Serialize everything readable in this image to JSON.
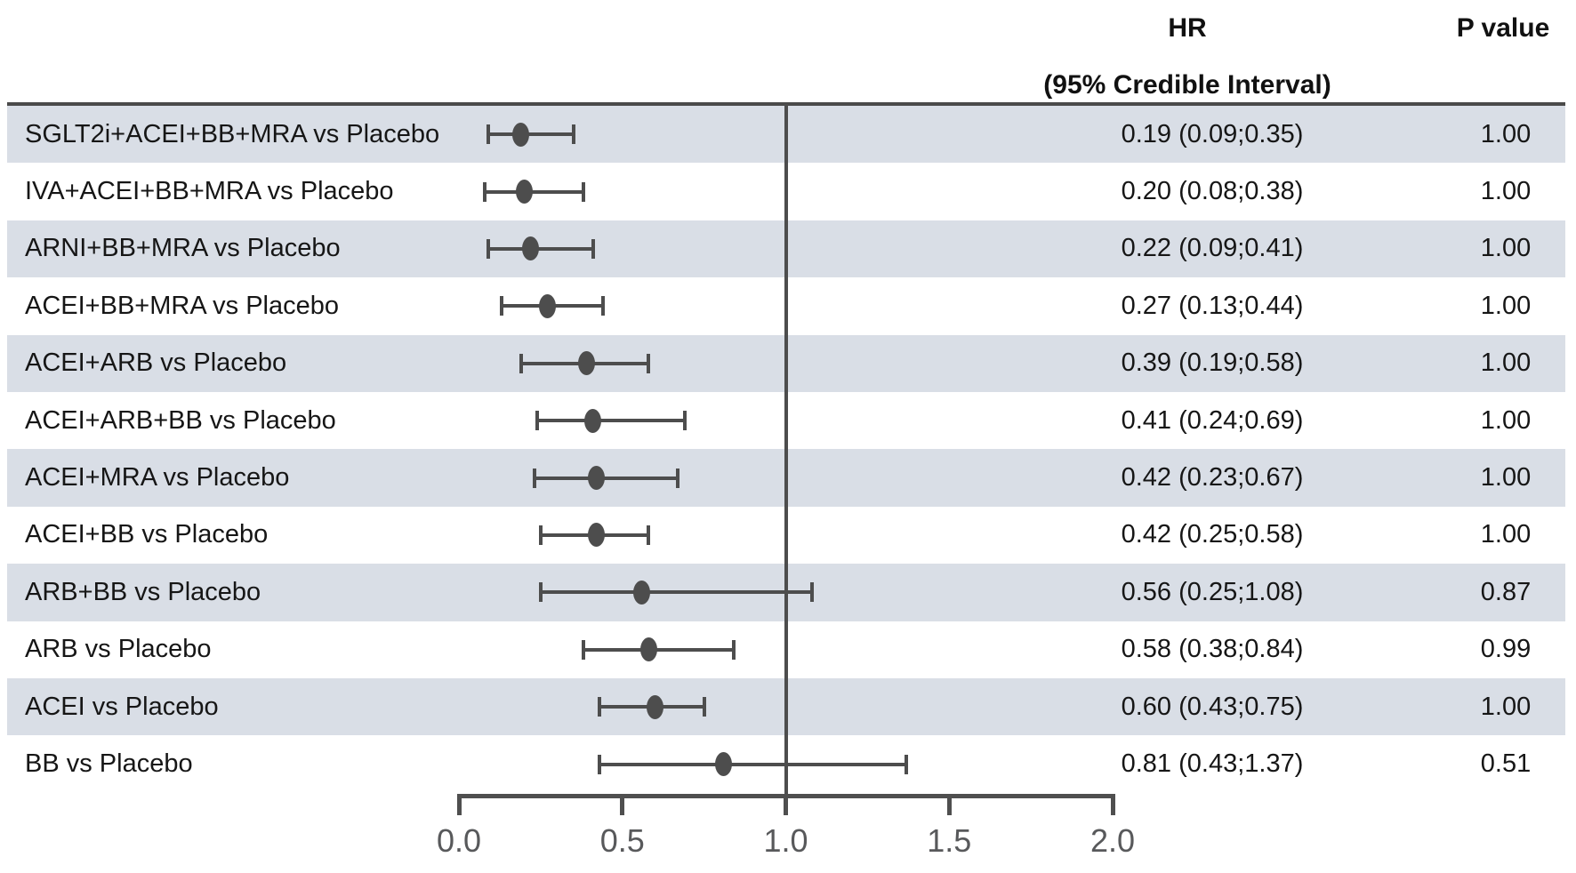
{
  "header": {
    "hr_label": "HR",
    "hr_sublabel": "(95% Credible Interval)",
    "p_label": "P value"
  },
  "chart_data": {
    "type": "forest",
    "title": "",
    "xlabel": "",
    "legend": null,
    "axis": {
      "min": 0.0,
      "max": 2.0,
      "tick_values": [
        0.0,
        0.5,
        1.0,
        1.5,
        2.0
      ],
      "tick_labels": [
        "0.0",
        "0.5",
        "1.0",
        "1.5",
        "2.0"
      ],
      "reference_line": 1.0
    },
    "rows": [
      {
        "label": "SGLT2i+ACEI+BB+MRA vs Placebo",
        "hr": 0.19,
        "ci_low": 0.09,
        "ci_high": 0.35,
        "hr_text": "0.19 (0.09;0.35)",
        "p_value": "1.00"
      },
      {
        "label": "IVA+ACEI+BB+MRA vs Placebo",
        "hr": 0.2,
        "ci_low": 0.08,
        "ci_high": 0.38,
        "hr_text": "0.20 (0.08;0.38)",
        "p_value": "1.00"
      },
      {
        "label": "ARNI+BB+MRA vs Placebo",
        "hr": 0.22,
        "ci_low": 0.09,
        "ci_high": 0.41,
        "hr_text": "0.22 (0.09;0.41)",
        "p_value": "1.00"
      },
      {
        "label": "ACEI+BB+MRA vs Placebo",
        "hr": 0.27,
        "ci_low": 0.13,
        "ci_high": 0.44,
        "hr_text": "0.27 (0.13;0.44)",
        "p_value": "1.00"
      },
      {
        "label": "ACEI+ARB vs Placebo",
        "hr": 0.39,
        "ci_low": 0.19,
        "ci_high": 0.58,
        "hr_text": "0.39 (0.19;0.58)",
        "p_value": "1.00"
      },
      {
        "label": "ACEI+ARB+BB vs Placebo",
        "hr": 0.41,
        "ci_low": 0.24,
        "ci_high": 0.69,
        "hr_text": "0.41 (0.24;0.69)",
        "p_value": "1.00"
      },
      {
        "label": "ACEI+MRA vs Placebo",
        "hr": 0.42,
        "ci_low": 0.23,
        "ci_high": 0.67,
        "hr_text": "0.42 (0.23;0.67)",
        "p_value": "1.00"
      },
      {
        "label": "ACEI+BB vs Placebo",
        "hr": 0.42,
        "ci_low": 0.25,
        "ci_high": 0.58,
        "hr_text": "0.42 (0.25;0.58)",
        "p_value": "1.00"
      },
      {
        "label": "ARB+BB vs Placebo",
        "hr": 0.56,
        "ci_low": 0.25,
        "ci_high": 1.08,
        "hr_text": "0.56 (0.25;1.08)",
        "p_value": "0.87"
      },
      {
        "label": "ARB vs Placebo",
        "hr": 0.58,
        "ci_low": 0.38,
        "ci_high": 0.84,
        "hr_text": "0.58 (0.38;0.84)",
        "p_value": "0.99"
      },
      {
        "label": "ACEI vs Placebo",
        "hr": 0.6,
        "ci_low": 0.43,
        "ci_high": 0.75,
        "hr_text": "0.60 (0.43;0.75)",
        "p_value": "1.00"
      },
      {
        "label": "BB vs Placebo",
        "hr": 0.81,
        "ci_low": 0.43,
        "ci_high": 1.37,
        "hr_text": "0.81 (0.43;1.37)",
        "p_value": "0.51"
      }
    ]
  },
  "colors": {
    "band": "#d9dee6",
    "marker": "#4d4d4d",
    "axis": "#4f4f4f",
    "tick_label": "#58595b",
    "text": "#161616"
  }
}
